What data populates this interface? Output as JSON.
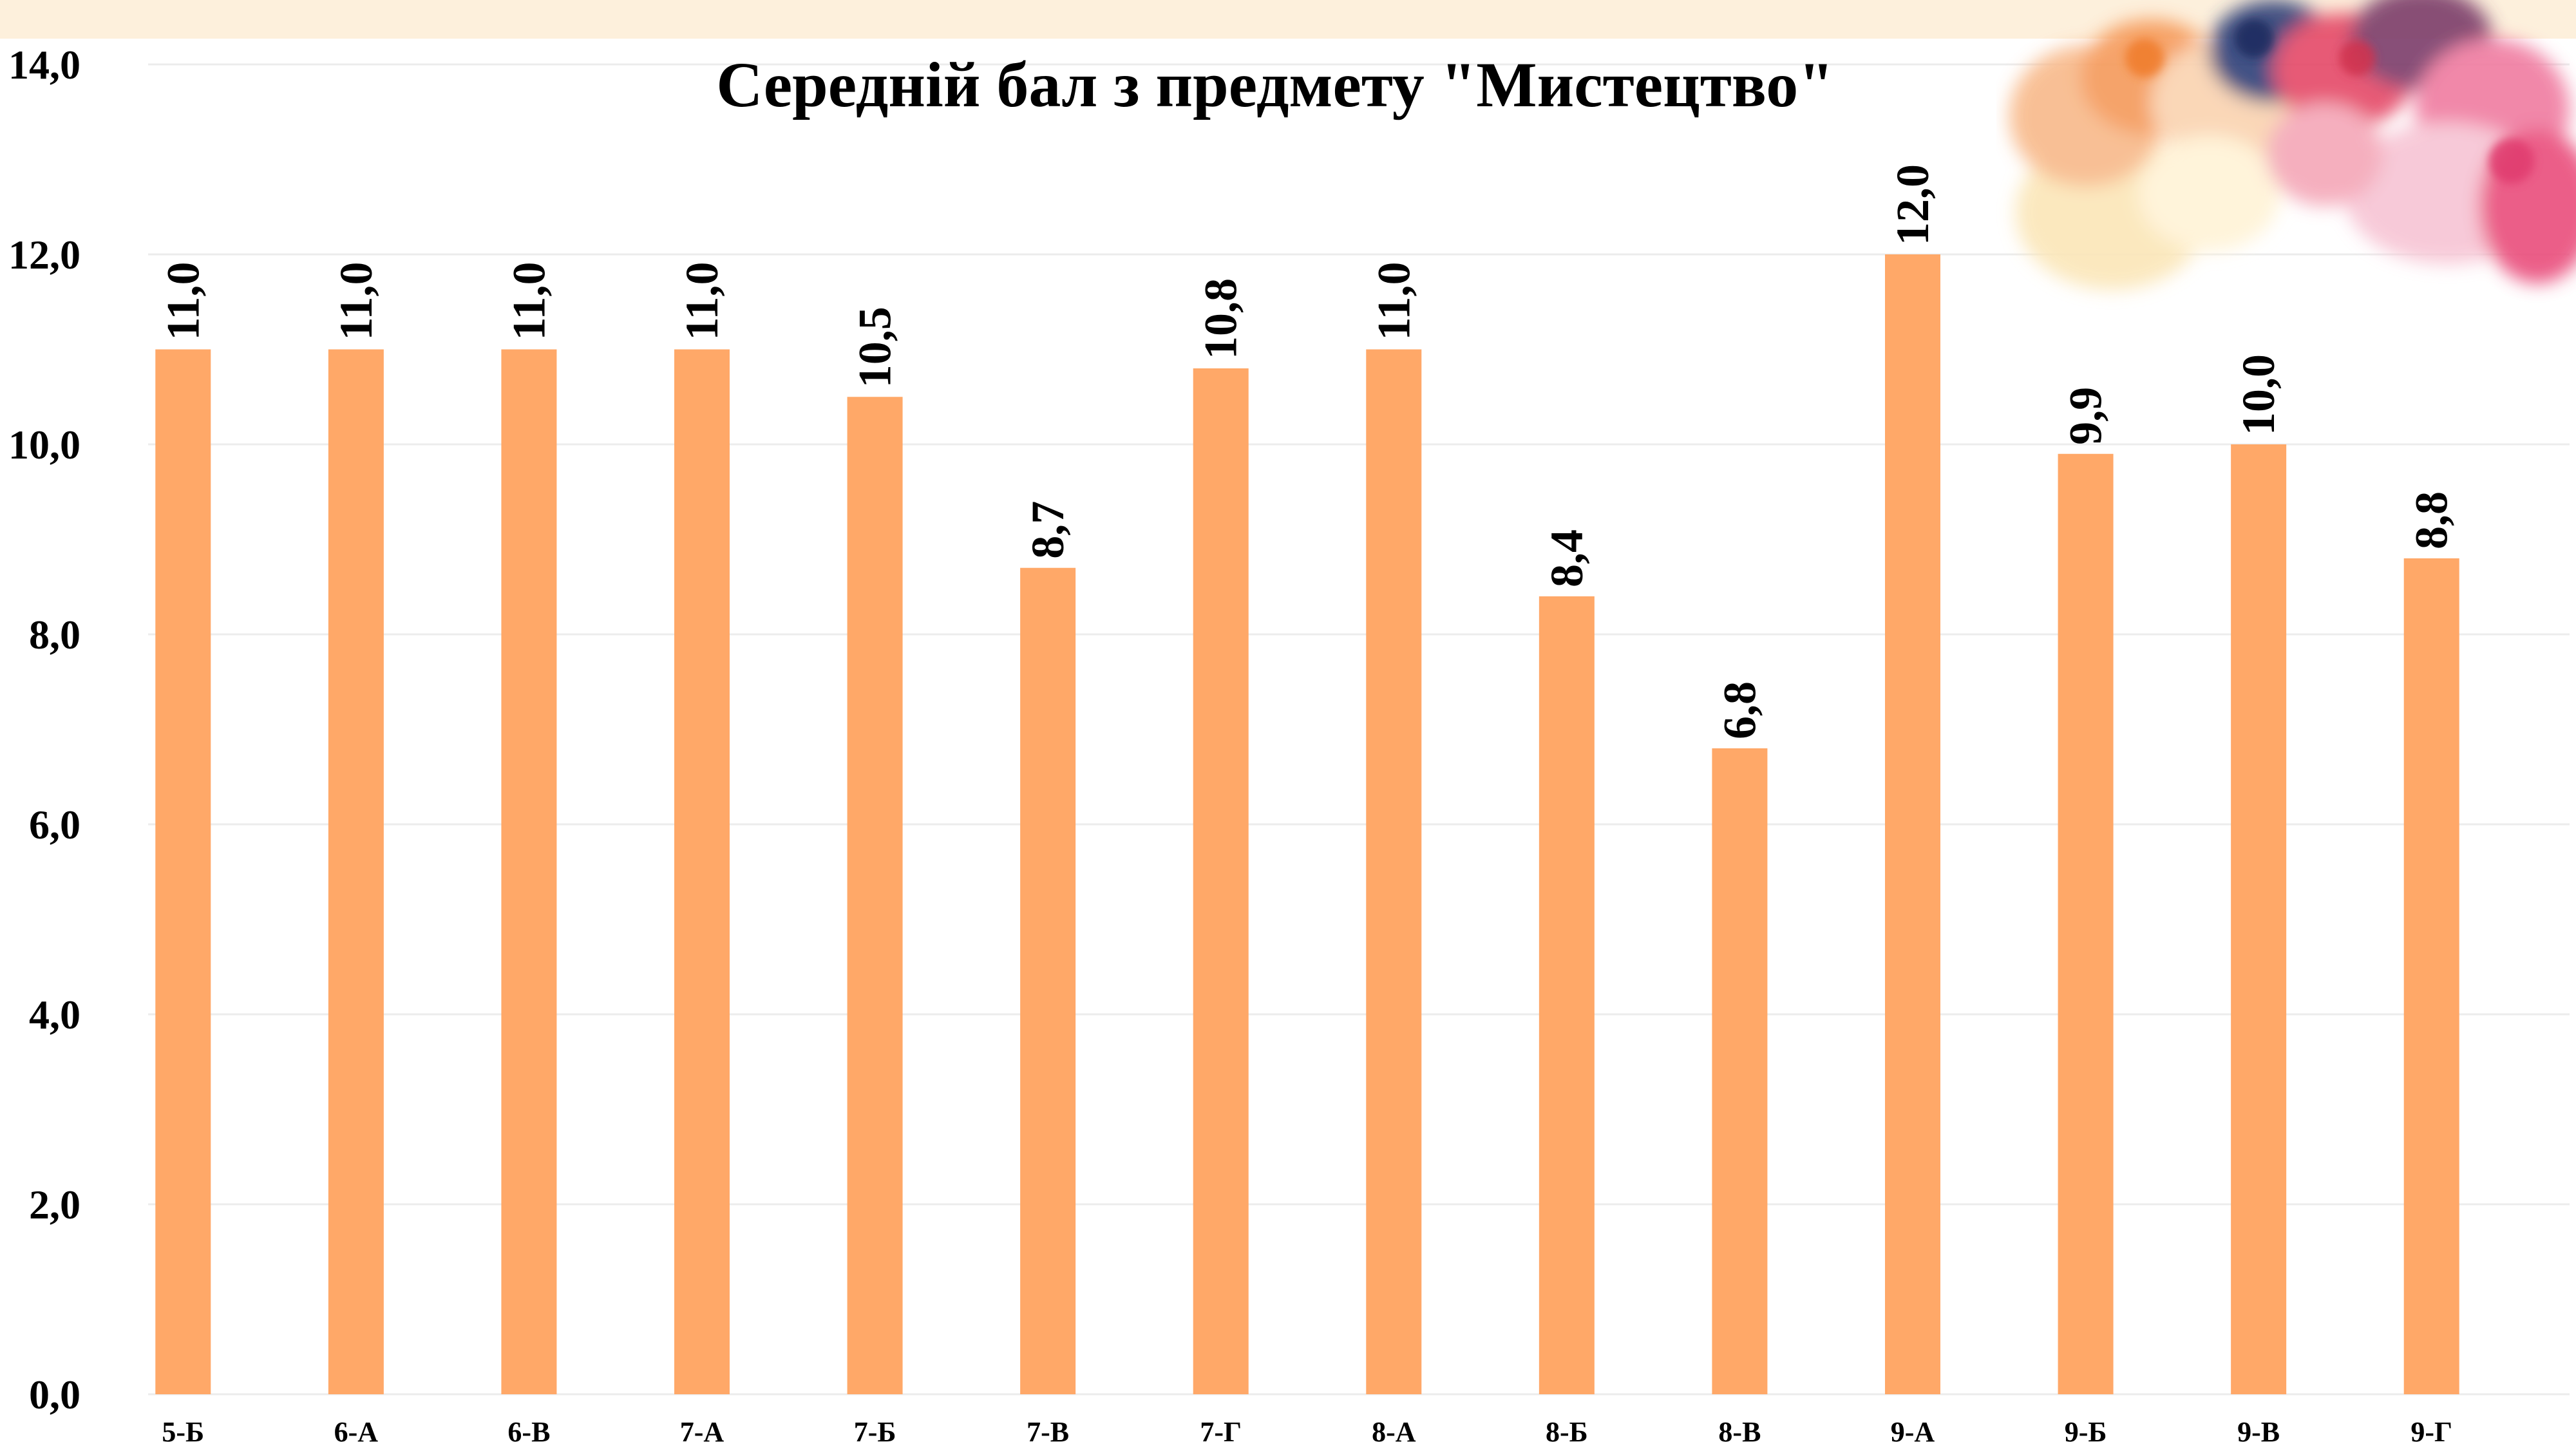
{
  "colors": {
    "bar": "#ffa868",
    "grid": "#ececec",
    "background": "#ffffff",
    "top_band": "#fdf0dc"
  },
  "decoration": {
    "name": "watercolor-splash"
  },
  "chart_data": {
    "type": "bar",
    "title": "Середній бал з предмету \"Мистецтво\"",
    "xlabel": "",
    "ylabel": "",
    "categories": [
      "5-Б",
      "6-А",
      "6-В",
      "7-А",
      "7-Б",
      "7-В",
      "7-Г",
      "8-А",
      "8-Б",
      "8-В",
      "9-А",
      "9-Б",
      "9-В",
      "9-Г"
    ],
    "values": [
      11.0,
      11.0,
      11.0,
      11.0,
      10.5,
      8.7,
      10.8,
      11.0,
      8.4,
      6.8,
      12.0,
      9.9,
      10.0,
      8.8
    ],
    "data_labels": [
      "11,0",
      "11,0",
      "11,0",
      "11,0",
      "10,5",
      "8,7",
      "10,8",
      "11,0",
      "8,4",
      "6,8",
      "12,0",
      "9,9",
      "10,0",
      "8,8"
    ],
    "ylim": [
      0,
      14
    ],
    "yticks": [
      "0,0",
      "2,0",
      "4,0",
      "6,0",
      "8,0",
      "10,0",
      "12,0",
      "14,0"
    ],
    "grid": true,
    "legend": "none"
  }
}
